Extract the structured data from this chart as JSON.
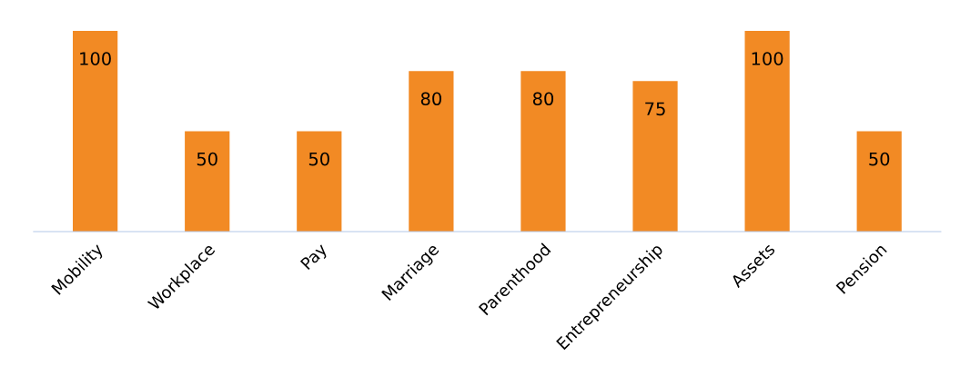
{
  "chart_data": {
    "type": "bar",
    "categories": [
      "Mobility",
      "Workplace",
      "Pay",
      "Marriage",
      "Parenthood",
      "Entrepreneurship",
      "Assets",
      "Pension"
    ],
    "values": [
      100,
      50,
      50,
      80,
      80,
      75,
      100,
      50
    ],
    "color": "#f28a24",
    "data_labels": true,
    "grid": false,
    "legend": false
  }
}
